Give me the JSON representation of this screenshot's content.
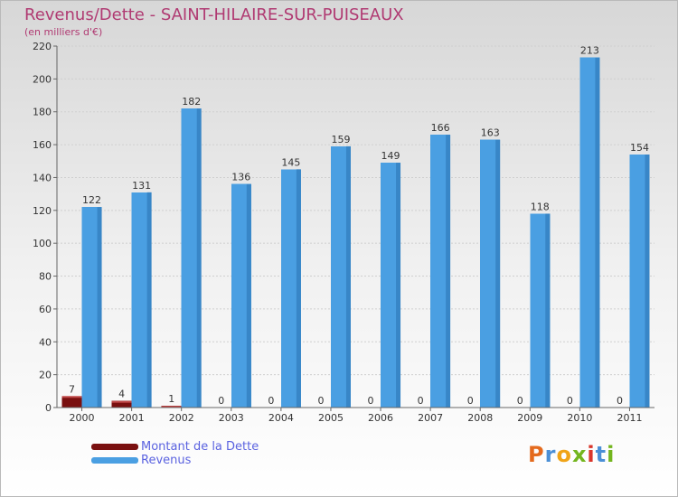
{
  "title": "Revenus/Dette - SAINT-HILAIRE-SUR-PUISEAUX",
  "unit": "(en milliers d'€)",
  "logo": {
    "letters": [
      "P",
      "r",
      "o",
      "x",
      "i",
      "t",
      "i"
    ],
    "colors": [
      "#e46a1d",
      "#4b8fd6",
      "#f0a417",
      "#73b51e",
      "#d9352b",
      "#4b8fd6",
      "#73b51e"
    ]
  },
  "chart_data": {
    "type": "bar",
    "title": "Revenus/Dette - SAINT-HILAIRE-SUR-PUISEAUX",
    "ylabel": "(en milliers d'€)",
    "xlabel": "",
    "categories": [
      "2000",
      "2001",
      "2002",
      "2003",
      "2004",
      "2005",
      "2006",
      "2007",
      "2008",
      "2009",
      "2010",
      "2011"
    ],
    "ylim": [
      0,
      220
    ],
    "yticks": [
      0,
      20,
      40,
      60,
      80,
      100,
      120,
      140,
      160,
      180,
      200,
      220
    ],
    "grid": true,
    "legend_position": "bottom-left",
    "series": [
      {
        "name": "Montant de la Dette",
        "color": "#7a1010",
        "values": [
          7,
          4,
          1,
          0,
          0,
          0,
          0,
          0,
          0,
          0,
          0,
          0
        ]
      },
      {
        "name": "Revenus",
        "color": "#4a9fe2",
        "values": [
          122,
          131,
          182,
          136,
          145,
          159,
          149,
          166,
          163,
          118,
          213,
          154
        ]
      }
    ]
  }
}
